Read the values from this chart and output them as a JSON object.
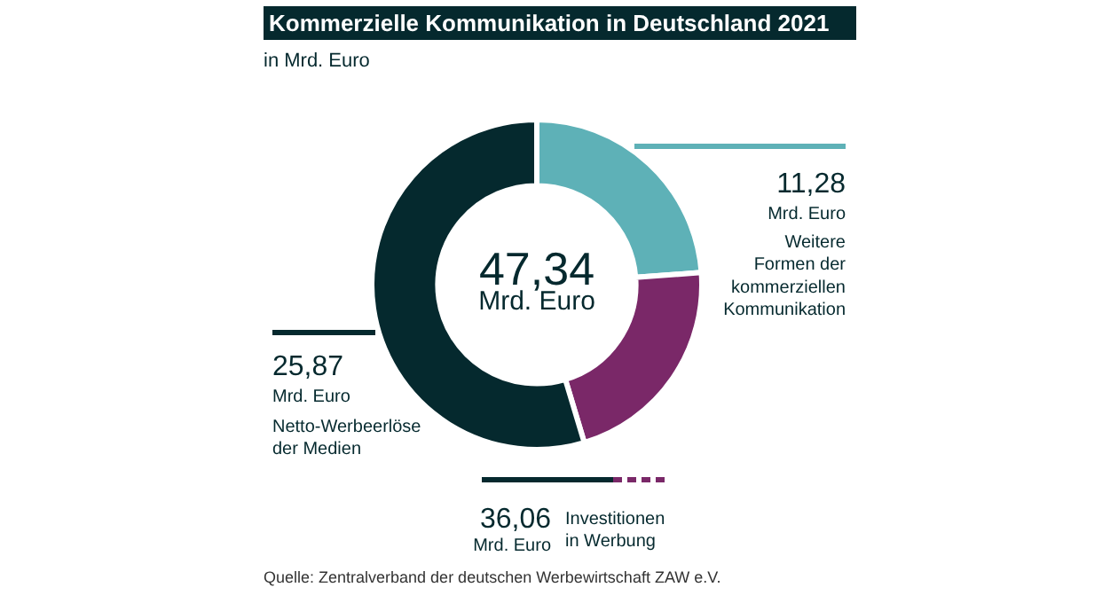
{
  "chart_data": {
    "type": "donut",
    "title": "Kommerzielle Kommunikation in Deutschland 2021",
    "subtitle": "in Mrd. Euro",
    "categories": [
      "Weitere Formen der kommerziellen Kommunikation",
      null,
      "Netto-Werbeerlöse der Medien"
    ],
    "values": [
      11.28,
      10.19,
      25.87
    ],
    "colors": [
      "#5eb1b7",
      "#7a2868",
      "#05292e"
    ],
    "value_labels": [
      "11,28",
      null,
      "25,87"
    ],
    "annotations": [
      "47,34",
      "Mrd. Euro",
      "Mrd. Euro",
      "Mrd. Euro",
      "36,06",
      "Mrd. Euro",
      "Investitionen in Werbung",
      "Quelle: Zentralverband der deutschen Werbewirtschaft ZAW e.V."
    ]
  }
}
